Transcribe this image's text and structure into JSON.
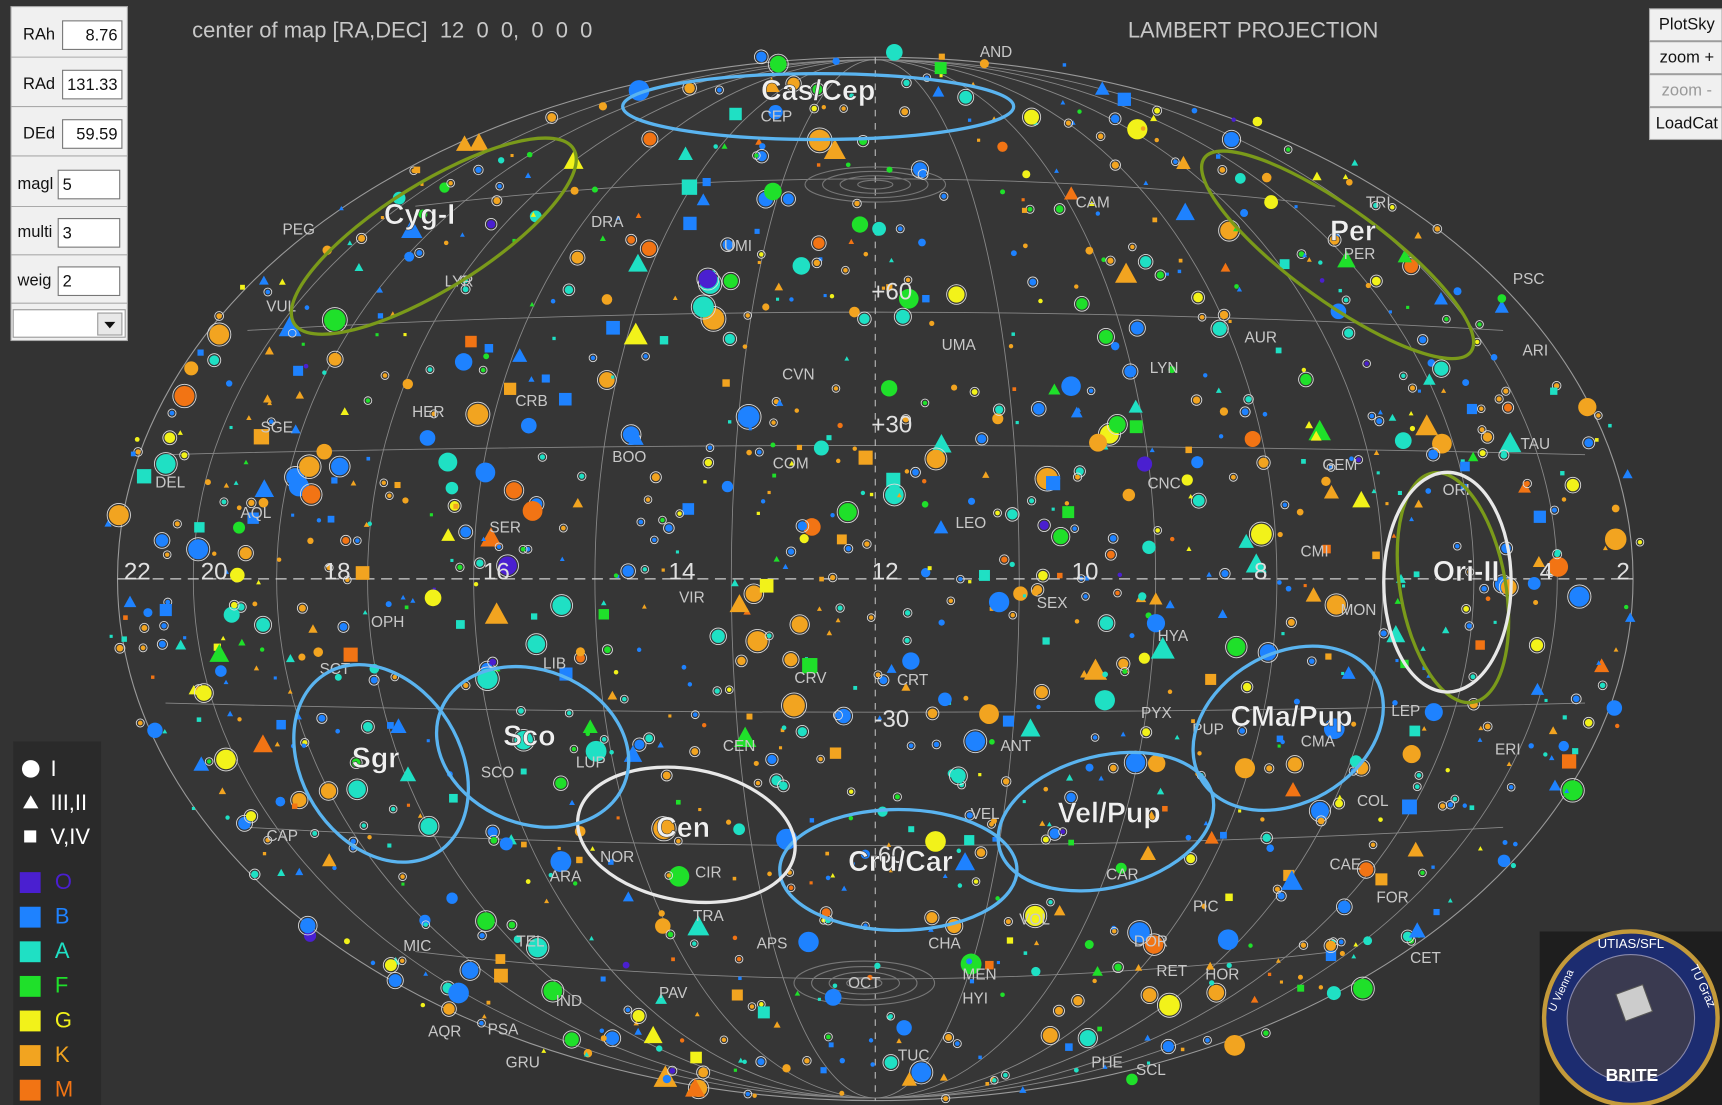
{
  "header": {
    "center_label": "center of map [RA,DEC]  12  0  0,  0  0  0",
    "projection": "LAMBERT PROJECTION"
  },
  "controls": [
    {
      "label": "RAh",
      "value": 8.76
    },
    {
      "label": "RAd",
      "value": 131.33
    },
    {
      "label": "DEd",
      "value": 59.59
    },
    {
      "label": "magl",
      "value": 5
    },
    {
      "label": "multi",
      "value": 3
    },
    {
      "label": "weig",
      "value": 2
    }
  ],
  "buttons": [
    "PlotSky",
    "zoom +",
    "zoom -",
    "LoadCat"
  ],
  "legend": {
    "sizes": [
      "I",
      "III,II",
      "V,IV"
    ],
    "spectral": [
      {
        "label": "O",
        "color": "#4a1fd0"
      },
      {
        "label": "B",
        "color": "#1e82ff"
      },
      {
        "label": "A",
        "color": "#1fe0c4"
      },
      {
        "label": "F",
        "color": "#1fe02a"
      },
      {
        "label": "G",
        "color": "#f2f21a"
      },
      {
        "label": "K",
        "color": "#f2a420"
      },
      {
        "label": "M",
        "color": "#f27414"
      }
    ]
  },
  "grid_labels": {
    "ra": [
      "22",
      "20",
      "18",
      "16",
      "14",
      "12",
      "10",
      "8",
      "4",
      "2"
    ],
    "dec": [
      "+60",
      "+30",
      "-30",
      "-60"
    ]
  },
  "fields": [
    "Cas/Cep",
    "Cyg-I",
    "Per",
    "Ori-II",
    "CMa/Pup",
    "Vel/Pup",
    "Cru/Car",
    "Cen",
    "Sco",
    "Sgr"
  ],
  "constellations": [
    "AND",
    "CEP",
    "CAM",
    "TRI",
    "PER",
    "PSC",
    "ARI",
    "TAU",
    "ORI",
    "AUR",
    "LYN",
    "UMA",
    "UMI",
    "DRA",
    "CVN",
    "BOO",
    "COM",
    "LEO",
    "CNC",
    "GEM",
    "CMI",
    "MON",
    "HYA",
    "SEX",
    "CRT",
    "CRV",
    "VIR",
    "SER",
    "HER",
    "CRB",
    "LYR",
    "VUL",
    "PEG",
    "SGE",
    "AQL",
    "DEL",
    "OPH",
    "LIB",
    "SCO",
    "LUP",
    "CEN",
    "CAP",
    "SCT",
    "NOR",
    "ARA",
    "TRA",
    "CIR",
    "APS",
    "CHA",
    "MEN",
    "OCT",
    "HYI",
    "TUC",
    "PHE",
    "SCL",
    "HOR",
    "RET",
    "DOR",
    "PIC",
    "CAE",
    "FOR",
    "COL",
    "LEP",
    "ERI",
    "CET",
    "PAV",
    "IND",
    "TEL",
    "MIC",
    "GRU",
    "PSA",
    "AQR",
    "VOL",
    "CAR",
    "VEL",
    "PUP",
    "PYX",
    "ANT",
    "CMA"
  ],
  "logo": {
    "top": "UTIAS/SFL",
    "left": "U Vienna",
    "right": "TU Graz",
    "name": "BRITE"
  }
}
